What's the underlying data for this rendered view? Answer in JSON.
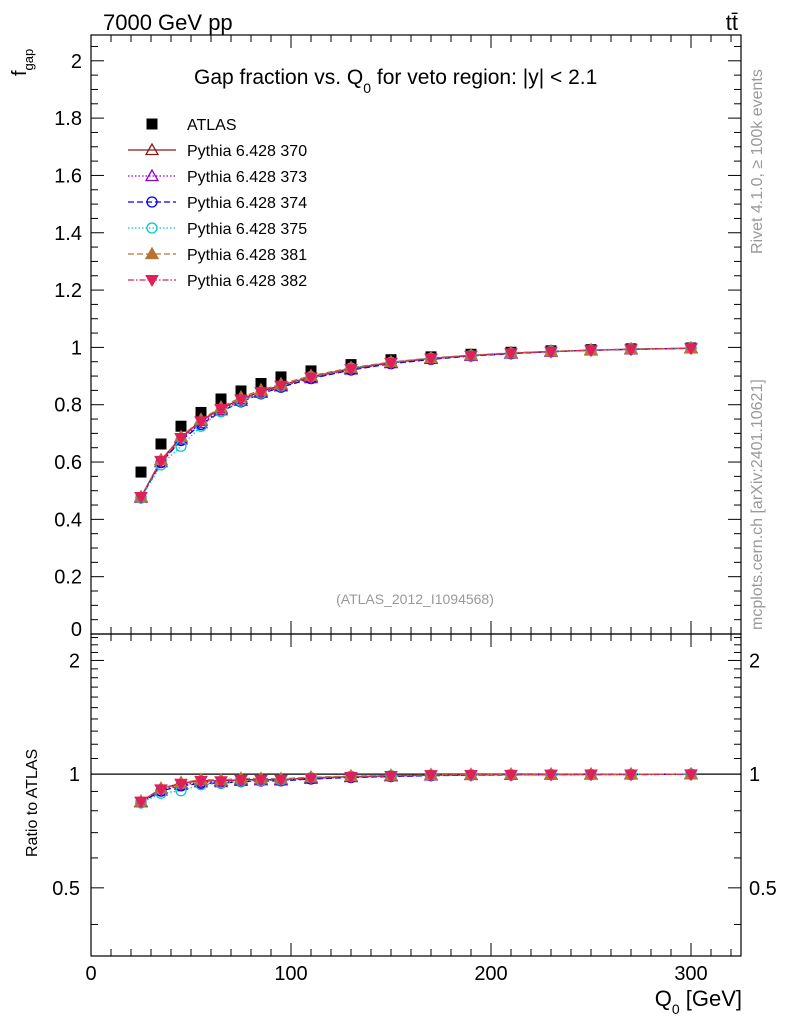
{
  "header": {
    "left": "7000 GeV pp",
    "right": "tt̄"
  },
  "side": {
    "rivet": "Rivet 4.1.0, ≥ 100k events",
    "mcplots": "mcplots.cern.ch [arXiv:2401.10621]"
  },
  "chart_data": {
    "type": "scatter",
    "title": "Gap fraction vs. Q",
    "title_sub": "0",
    "title_rest": " for veto region: |y| < 2.1",
    "watermark": "(ATLAS_2012_I1094568)",
    "ylabel_main": "f",
    "ylabel_main_sub": "gap",
    "ylabel_ratio": "Ratio to ATLAS",
    "xlabel": "Q",
    "xlabel_sub": "0",
    "xlabel_rest": " [GeV]",
    "xlim": [
      0,
      325
    ],
    "ylim": [
      0,
      2.09
    ],
    "ratio_ylim": [
      0.33,
      2.35
    ],
    "x_ticks": [
      "0",
      "100",
      "200",
      "300"
    ],
    "y_ticks": [
      "0",
      "0.2",
      "0.4",
      "0.6",
      "0.8",
      "1",
      "1.2",
      "1.4",
      "1.6",
      "1.8",
      "2"
    ],
    "ratio_ticks": [
      "0.5",
      "1",
      "2"
    ],
    "x": [
      25,
      35,
      45,
      55,
      65,
      75,
      85,
      95,
      110,
      130,
      150,
      170,
      190,
      210,
      230,
      250,
      270,
      300
    ],
    "data": {
      "name": "ATLAS",
      "values": [
        0.565,
        0.663,
        0.725,
        0.773,
        0.82,
        0.848,
        0.874,
        0.897,
        0.918,
        0.94,
        0.957,
        0.967,
        0.976,
        0.983,
        0.988,
        0.992,
        0.995,
        0.998
      ]
    },
    "series": [
      {
        "name": "Pythia 6.428 370",
        "color": "#8b1a1a",
        "dash": "",
        "marker": "triangle-up-open",
        "values": [
          0.478,
          0.607,
          0.686,
          0.744,
          0.787,
          0.82,
          0.846,
          0.868,
          0.897,
          0.926,
          0.947,
          0.962,
          0.972,
          0.98,
          0.986,
          0.99,
          0.994,
          0.997
        ]
      },
      {
        "name": "Pythia 6.428 373",
        "color": "#9400d3",
        "dash": "1.5,2",
        "marker": "triangle-up-open",
        "values": [
          0.476,
          0.6,
          0.679,
          0.736,
          0.781,
          0.814,
          0.842,
          0.864,
          0.893,
          0.923,
          0.945,
          0.96,
          0.971,
          0.979,
          0.985,
          0.99,
          0.993,
          0.997
        ]
      },
      {
        "name": "Pythia 6.428 374",
        "color": "#0000ee",
        "dash": "6,3",
        "marker": "circle-open",
        "values": [
          0.476,
          0.598,
          0.675,
          0.731,
          0.776,
          0.81,
          0.838,
          0.861,
          0.891,
          0.921,
          0.943,
          0.958,
          0.97,
          0.978,
          0.985,
          0.99,
          0.993,
          0.997
        ]
      },
      {
        "name": "Pythia 6.428 375",
        "color": "#00c8c8",
        "dash": "1.5,2",
        "marker": "circle-open",
        "values": [
          0.474,
          0.59,
          0.655,
          0.725,
          0.776,
          0.812,
          0.84,
          0.865,
          0.898,
          0.928,
          0.948,
          0.962,
          0.972,
          0.98,
          0.986,
          0.99,
          0.994,
          0.997
        ]
      },
      {
        "name": "Pythia 6.428 381",
        "color": "#b87333",
        "dash": "6,3",
        "marker": "triangle-up-filled",
        "values": [
          0.478,
          0.607,
          0.688,
          0.748,
          0.791,
          0.826,
          0.851,
          0.872,
          0.901,
          0.929,
          0.949,
          0.963,
          0.973,
          0.981,
          0.986,
          0.991,
          0.994,
          0.997
        ]
      },
      {
        "name": "Pythia 6.428 382",
        "color": "#e0205a",
        "dash": "6,2,1.5,2",
        "marker": "triangle-down-filled",
        "values": [
          0.478,
          0.604,
          0.684,
          0.742,
          0.785,
          0.818,
          0.844,
          0.866,
          0.895,
          0.924,
          0.946,
          0.961,
          0.971,
          0.979,
          0.985,
          0.99,
          0.993,
          0.997
        ]
      }
    ]
  }
}
